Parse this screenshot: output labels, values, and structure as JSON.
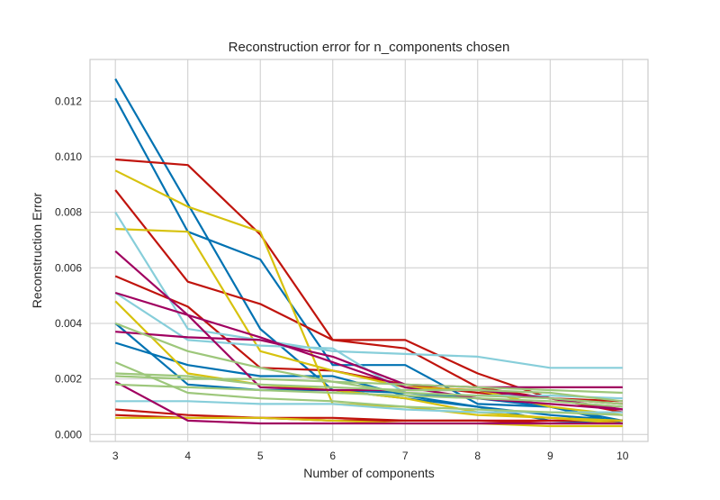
{
  "chart_data": {
    "type": "line",
    "title": "Reconstruction error for n_components chosen",
    "xlabel": "Number of components",
    "ylabel": "Reconstruction Error",
    "x": [
      3,
      4,
      5,
      6,
      7,
      8,
      9,
      10
    ],
    "xlim": [
      2.65,
      10.35
    ],
    "ylim": [
      -0.00025,
      0.0135
    ],
    "xticks": [
      "3",
      "4",
      "5",
      "6",
      "7",
      "8",
      "9",
      "10"
    ],
    "yticks": [
      {
        "value": 0.0,
        "label": "0.000"
      },
      {
        "value": 0.002,
        "label": "0.002"
      },
      {
        "value": 0.004,
        "label": "0.004"
      },
      {
        "value": 0.006,
        "label": "0.006"
      },
      {
        "value": 0.008,
        "label": "0.008"
      },
      {
        "value": 0.01,
        "label": "0.010"
      },
      {
        "value": 0.012,
        "label": "0.012"
      }
    ],
    "grid": true,
    "legend": "none",
    "series": [
      {
        "color": "#0072B2",
        "values": [
          0.0128,
          0.0083,
          0.0038,
          0.0016,
          0.0015,
          0.0013,
          0.001,
          0.0004
        ]
      },
      {
        "color": "#0072B2",
        "values": [
          0.0121,
          0.0073,
          0.0063,
          0.0025,
          0.0025,
          0.0011,
          0.001,
          0.0005
        ]
      },
      {
        "color": "#0072B2",
        "values": [
          0.004,
          0.0018,
          0.0016,
          0.0016,
          0.0013,
          0.001,
          0.0005,
          0.0004
        ]
      },
      {
        "color": "#0072B2",
        "values": [
          0.0033,
          0.0025,
          0.0021,
          0.0021,
          0.0014,
          0.001,
          0.0007,
          0.0005
        ]
      },
      {
        "color": "#C0140D",
        "values": [
          0.0099,
          0.0097,
          0.0072,
          0.0034,
          0.0034,
          0.0022,
          0.0013,
          0.0008
        ]
      },
      {
        "color": "#C0140D",
        "values": [
          0.0088,
          0.0055,
          0.0047,
          0.0034,
          0.0031,
          0.0017,
          0.0013,
          0.0012
        ]
      },
      {
        "color": "#C0140D",
        "values": [
          0.0057,
          0.0046,
          0.0024,
          0.0023,
          0.0018,
          0.0015,
          0.0013,
          0.0011
        ]
      },
      {
        "color": "#C0140D",
        "values": [
          0.0009,
          0.0007,
          0.0006,
          0.0006,
          0.0005,
          0.0005,
          0.0004,
          0.0004
        ]
      },
      {
        "color": "#C0140D",
        "values": [
          0.0007,
          0.0006,
          0.0006,
          0.0005,
          0.0005,
          0.0005,
          0.0005,
          0.0005
        ]
      },
      {
        "color": "#D7C20E",
        "values": [
          0.0095,
          0.0082,
          0.0073,
          0.0011,
          0.001,
          0.0007,
          0.0006,
          0.0004
        ]
      },
      {
        "color": "#D7C20E",
        "values": [
          0.0074,
          0.0073,
          0.003,
          0.0023,
          0.0017,
          0.0016,
          0.001,
          0.0007
        ]
      },
      {
        "color": "#D7C20E",
        "values": [
          0.0048,
          0.0022,
          0.0018,
          0.0016,
          0.0013,
          0.0008,
          0.0006,
          0.0005
        ]
      },
      {
        "color": "#D7C20E",
        "values": [
          0.0006,
          0.0006,
          0.0006,
          0.0005,
          0.0004,
          0.0004,
          0.0003,
          0.0003
        ]
      },
      {
        "color": "#87CEDA",
        "values": [
          0.008,
          0.0038,
          0.0034,
          0.003,
          0.0029,
          0.0028,
          0.0024,
          0.0024
        ]
      },
      {
        "color": "#87CEDA",
        "values": [
          0.0012,
          0.0012,
          0.0011,
          0.0011,
          0.0009,
          0.0008,
          0.0008,
          0.0008
        ]
      },
      {
        "color": "#87CEDA",
        "values": [
          0.0051,
          0.0034,
          0.0032,
          0.0031,
          0.0015,
          0.0014,
          0.0014,
          0.0013
        ]
      },
      {
        "color": "#A00060",
        "values": [
          0.0051,
          0.0043,
          0.0017,
          0.0016,
          0.0016,
          0.0016,
          0.0013,
          0.0009
        ]
      },
      {
        "color": "#A00060",
        "values": [
          0.0037,
          0.0035,
          0.0034,
          0.0028,
          0.0018,
          0.0017,
          0.0017,
          0.0017
        ]
      },
      {
        "color": "#A00060",
        "values": [
          0.0019,
          0.0005,
          0.0004,
          0.0004,
          0.0004,
          0.0004,
          0.0004,
          0.0004
        ]
      },
      {
        "color": "#A00060",
        "values": [
          0.0066,
          0.0043,
          0.0035,
          0.0026,
          0.0017,
          0.0013,
          0.0011,
          0.0009
        ]
      },
      {
        "color": "#9DC77B",
        "values": [
          0.0026,
          0.0015,
          0.0013,
          0.0012,
          0.001,
          0.0009,
          0.0008,
          0.0007
        ]
      },
      {
        "color": "#9DC77B",
        "values": [
          0.0022,
          0.0021,
          0.0018,
          0.0017,
          0.0016,
          0.0016,
          0.0015,
          0.0012
        ]
      },
      {
        "color": "#9DC77B",
        "values": [
          0.0018,
          0.0017,
          0.0016,
          0.0015,
          0.0014,
          0.0013,
          0.0012,
          0.001
        ]
      },
      {
        "color": "#9DC77B",
        "values": [
          0.004,
          0.003,
          0.0024,
          0.0019,
          0.0015,
          0.0014,
          0.0013,
          0.0011
        ]
      },
      {
        "color": "#9DC77B",
        "values": [
          0.0021,
          0.002,
          0.002,
          0.0019,
          0.0018,
          0.0017,
          0.0016,
          0.0015
        ]
      }
    ]
  }
}
